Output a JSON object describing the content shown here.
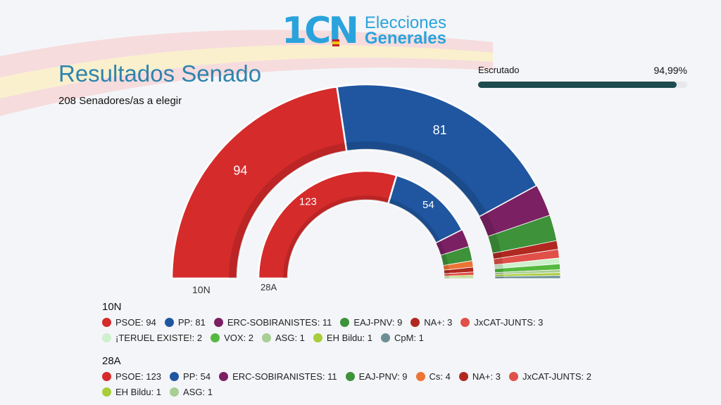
{
  "logo": {
    "mark": "1CN",
    "line1": "Elecciones",
    "line2": "Generales"
  },
  "header": {
    "title": "Resultados Senado",
    "subtitle": "208 Senadores/as a elegir"
  },
  "progress": {
    "label": "Escrutado",
    "value_text": "94,99%",
    "value": 94.99
  },
  "chart_data": {
    "type": "pie",
    "subtype": "parliament-semicircle",
    "title": "Resultados Senado",
    "total_seats": 208,
    "series": [
      {
        "name": "10N",
        "ring": "outer",
        "parties": [
          {
            "name": "PSOE",
            "seats": 94,
            "color": "#d52b2b",
            "label": "PSOE: 94",
            "show_value": true
          },
          {
            "name": "PP",
            "seats": 81,
            "color": "#1f569f",
            "label": "PP: 81",
            "show_value": true
          },
          {
            "name": "ERC-SOBIRANISTES",
            "seats": 11,
            "color": "#7b2063",
            "label": "ERC-SOBIRANISTES: 11"
          },
          {
            "name": "EAJ-PNV",
            "seats": 9,
            "color": "#3d923a",
            "label": "EAJ-PNV: 9"
          },
          {
            "name": "NA+",
            "seats": 3,
            "color": "#b0281f",
            "label": "NA+: 3"
          },
          {
            "name": "JxCAT-JUNTS",
            "seats": 3,
            "color": "#e05049",
            "label": "JxCAT-JUNTS: 3"
          },
          {
            "name": "¡TERUEL EXISTE!",
            "seats": 2,
            "color": "#cdf0cd",
            "label": "¡TERUEL EXISTE!: 2"
          },
          {
            "name": "VOX",
            "seats": 2,
            "color": "#55b93f",
            "label": "VOX: 2"
          },
          {
            "name": "ASG",
            "seats": 1,
            "color": "#a8cd95",
            "label": "ASG: 1"
          },
          {
            "name": "EH Bildu",
            "seats": 1,
            "color": "#a9cc3a",
            "label": "EH Bildu: 1"
          },
          {
            "name": "CpM",
            "seats": 1,
            "color": "#6b8f95",
            "label": "CpM: 1"
          }
        ]
      },
      {
        "name": "28A",
        "ring": "inner",
        "parties": [
          {
            "name": "PSOE",
            "seats": 123,
            "color": "#d52b2b",
            "label": "PSOE: 123",
            "show_value": true
          },
          {
            "name": "PP",
            "seats": 54,
            "color": "#1f569f",
            "label": "PP: 54",
            "show_value": true
          },
          {
            "name": "ERC-SOBIRANISTES",
            "seats": 11,
            "color": "#7b2063",
            "label": "ERC-SOBIRANISTES: 11"
          },
          {
            "name": "EAJ-PNV",
            "seats": 9,
            "color": "#3d923a",
            "label": "EAJ-PNV: 9"
          },
          {
            "name": "Cs",
            "seats": 4,
            "color": "#ec7434",
            "label": "Cs: 4"
          },
          {
            "name": "NA+",
            "seats": 3,
            "color": "#b0281f",
            "label": "NA+: 3"
          },
          {
            "name": "JxCAT-JUNTS",
            "seats": 2,
            "color": "#e05049",
            "label": "JxCAT-JUNTS: 2"
          },
          {
            "name": "EH Bildu",
            "seats": 1,
            "color": "#a9cc3a",
            "label": "EH Bildu: 1"
          },
          {
            "name": "ASG",
            "seats": 1,
            "color": "#a8cd95",
            "label": "ASG: 1"
          }
        ]
      }
    ],
    "legend_placement": "bottom"
  }
}
